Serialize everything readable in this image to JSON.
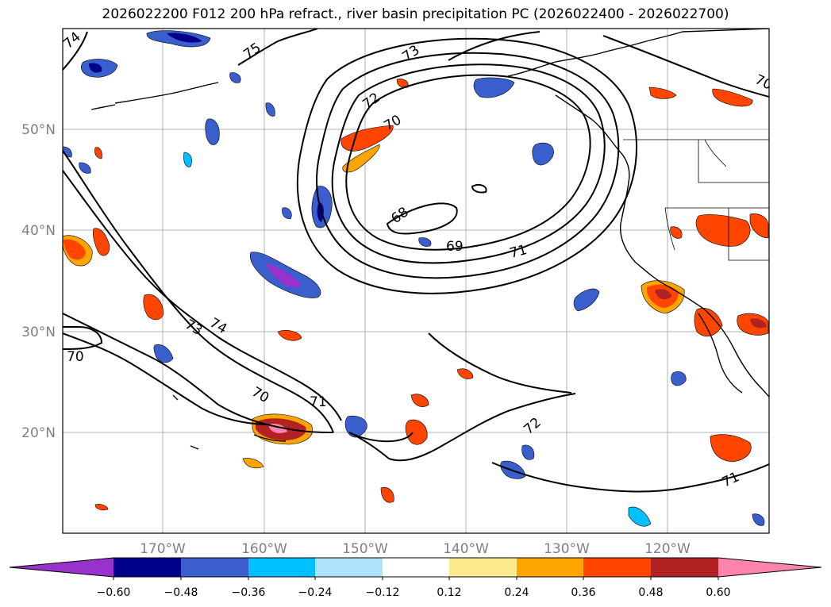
{
  "title": "2026022200 F012 200 hPa refract., river basin precipitation PC (2026022400 - 2026022700)",
  "map": {
    "lon_labels": [
      "170°W",
      "160°W",
      "150°W",
      "140°W",
      "130°W",
      "120°W"
    ],
    "lat_labels": [
      "50°N",
      "40°N",
      "30°N",
      "20°N"
    ],
    "axis_label_color": "#808080",
    "contour_labels": [
      "74",
      "75",
      "73",
      "72",
      "70",
      "68",
      "69",
      "71",
      "74",
      "73",
      "70",
      "70",
      "71",
      "72",
      "71",
      "70"
    ]
  },
  "colorbar": {
    "ticks": [
      "−0.60",
      "−0.48",
      "−0.36",
      "−0.24",
      "−0.12",
      "0.12",
      "0.24",
      "0.36",
      "0.48",
      "0.60"
    ],
    "colors": [
      "#9932cc",
      "#00008b",
      "#3a5fcd",
      "#00bfff",
      "#aee2fa",
      "#ffffff",
      "#fde98e",
      "#ffa500",
      "#ff4500",
      "#b22222",
      "#ff85ad"
    ]
  }
}
